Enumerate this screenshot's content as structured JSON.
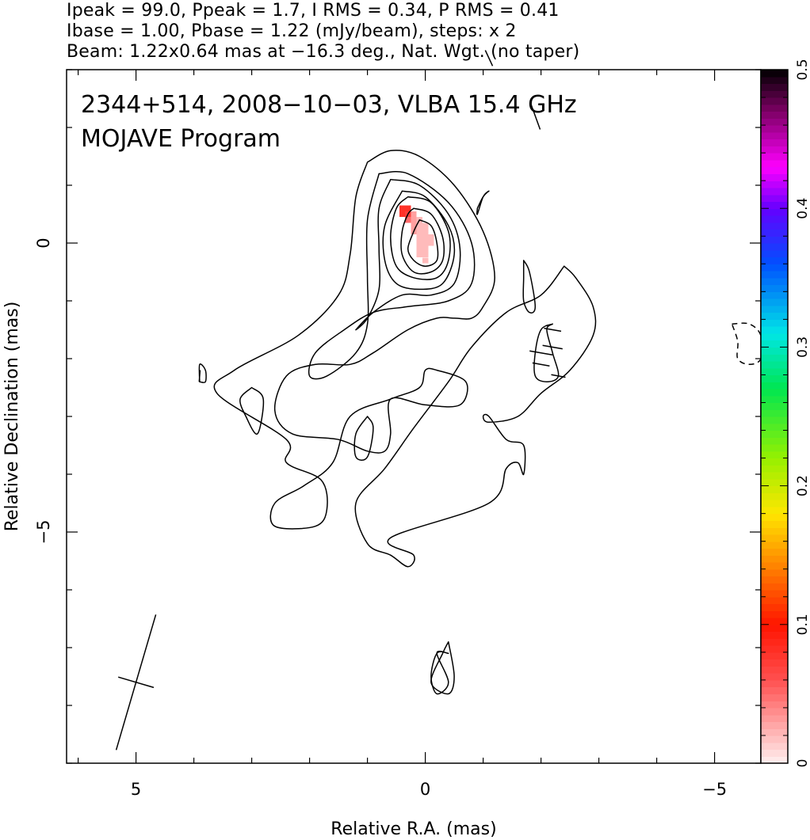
{
  "header": {
    "line1": "Ipeak = 99.0, Ppeak = 1.7, I RMS = 0.34, P RMS = 0.41",
    "line2": "Ibase = 1.00, Pbase = 1.22 (mJy/beam), steps: x 2",
    "line3": "Beam: 1.22x0.64 mas at −16.3 deg., Nat. Wgt. (no taper)"
  },
  "annotation": {
    "line1": "2344+514, 2008−10−03, VLBA 15.4 GHz",
    "line2": "MOJAVE Program"
  },
  "chart_data": {
    "type": "contour",
    "source": "2344+514",
    "date": "2008-10-03",
    "instrument": "VLBA 15.4 GHz",
    "xlabel": "Relative R.A. (mas)",
    "ylabel": "Relative Declination (mas)",
    "xlim": [
      6.2,
      -5.8
    ],
    "ylim": [
      -9.0,
      3.0
    ],
    "x_inverted": true,
    "x_ticks": [
      {
        "value": 5,
        "label": "5"
      },
      {
        "value": 0,
        "label": "0"
      },
      {
        "value": -5,
        "label": "−5"
      }
    ],
    "y_ticks": [
      {
        "value": 0,
        "label": "0"
      },
      {
        "value": -5,
        "label": "−5"
      }
    ],
    "minor_tick_step": 1,
    "stats": {
      "Ipeak": 99.0,
      "Ppeak": 1.7,
      "I_RMS": 0.34,
      "P_RMS": 0.41,
      "Ibase": 1.0,
      "Pbase": 1.22,
      "units": "mJy/beam",
      "contour_step_factor": 2
    },
    "beam": {
      "major_mas": 1.22,
      "minor_mas": 0.64,
      "pa_deg": -16.3,
      "weighting": "Natural",
      "taper": "none",
      "marker_center": [
        5.0,
        -7.6
      ]
    },
    "colorbar": {
      "min": 0,
      "max": 0.5,
      "ticks": [
        {
          "value": 0,
          "label": "0"
        },
        {
          "value": 0.1,
          "label": "0.1"
        },
        {
          "value": 0.2,
          "label": "0.2"
        },
        {
          "value": 0.3,
          "label": "0.3"
        },
        {
          "value": 0.4,
          "label": "0.4"
        },
        {
          "value": 0.5,
          "label": "0.5"
        }
      ],
      "stops": [
        {
          "v": 0.0,
          "color": "#fff0f0"
        },
        {
          "v": 0.06,
          "color": "#ff5050"
        },
        {
          "v": 0.1,
          "color": "#ff1400"
        },
        {
          "v": 0.14,
          "color": "#ff7d00"
        },
        {
          "v": 0.18,
          "color": "#ffe600"
        },
        {
          "v": 0.22,
          "color": "#96f000"
        },
        {
          "v": 0.27,
          "color": "#00e650"
        },
        {
          "v": 0.31,
          "color": "#00e6e6"
        },
        {
          "v": 0.36,
          "color": "#0050ff"
        },
        {
          "v": 0.4,
          "color": "#6400ff"
        },
        {
          "v": 0.43,
          "color": "#ff00ff"
        },
        {
          "v": 0.47,
          "color": "#7d0064"
        },
        {
          "v": 0.5,
          "color": "#000000"
        }
      ]
    },
    "fractional_pol_pixels": {
      "color_scale_max": 0.5,
      "pixels": [
        {
          "x": 0.4,
          "y": 0.6,
          "v": 0.08
        },
        {
          "x": 0.3,
          "y": 0.6,
          "v": 0.08
        },
        {
          "x": 0.3,
          "y": 0.5,
          "v": 0.07
        },
        {
          "x": 0.4,
          "y": 0.5,
          "v": 0.08
        },
        {
          "x": 0.2,
          "y": 0.5,
          "v": 0.03
        },
        {
          "x": 0.2,
          "y": 0.4,
          "v": 0.03
        },
        {
          "x": 0.1,
          "y": 0.4,
          "v": 0.02
        },
        {
          "x": 0.3,
          "y": 0.4,
          "v": 0.05
        },
        {
          "x": 0.1,
          "y": 0.3,
          "v": 0.02
        },
        {
          "x": 0.2,
          "y": 0.3,
          "v": 0.03
        },
        {
          "x": 0.0,
          "y": 0.3,
          "v": 0.02
        },
        {
          "x": 0.0,
          "y": 0.2,
          "v": 0.02
        },
        {
          "x": 0.1,
          "y": 0.2,
          "v": 0.02
        },
        {
          "x": 0.2,
          "y": 0.2,
          "v": 0.03
        },
        {
          "x": -0.1,
          "y": 0.1,
          "v": 0.02
        },
        {
          "x": 0.0,
          "y": 0.1,
          "v": 0.02
        },
        {
          "x": 0.1,
          "y": 0.1,
          "v": 0.02
        },
        {
          "x": -0.1,
          "y": 0.0,
          "v": 0.02
        },
        {
          "x": 0.0,
          "y": 0.0,
          "v": 0.02
        },
        {
          "x": 0.1,
          "y": 0.0,
          "v": 0.02
        },
        {
          "x": 0.0,
          "y": -0.1,
          "v": 0.02
        },
        {
          "x": 0.1,
          "y": -0.1,
          "v": 0.02
        },
        {
          "x": 0.0,
          "y": -0.2,
          "v": 0.02
        },
        {
          "x": 0.1,
          "y": -0.2,
          "v": 0.02
        },
        {
          "x": 0.0,
          "y": -0.3,
          "v": 0.02
        }
      ]
    },
    "contours": [
      {
        "level": 1,
        "style": "solid",
        "points": [
          [
            1.0,
            1.4
          ],
          [
            0.6,
            1.6
          ],
          [
            0.1,
            1.5
          ],
          [
            -0.5,
            1.0
          ],
          [
            -1.0,
            0.2
          ],
          [
            -1.2,
            -0.6
          ],
          [
            -1.0,
            -1.1
          ],
          [
            -0.8,
            -1.3
          ],
          [
            -0.5,
            -1.3
          ],
          [
            -0.2,
            -1.3
          ],
          [
            0.3,
            -1.5
          ],
          [
            0.9,
            -1.9
          ],
          [
            1.3,
            -2.1
          ],
          [
            1.9,
            -2.1
          ],
          [
            2.4,
            -2.3
          ],
          [
            2.6,
            -2.9
          ],
          [
            2.3,
            -3.3
          ],
          [
            1.5,
            -3.4
          ],
          [
            1.0,
            -3.6
          ],
          [
            0.7,
            -3.6
          ],
          [
            0.6,
            -3.3
          ],
          [
            0.6,
            -2.7
          ],
          [
            0.0,
            -2.8
          ],
          [
            -0.6,
            -2.8
          ],
          [
            -0.7,
            -2.4
          ],
          [
            -0.2,
            -2.2
          ],
          [
            0.0,
            -2.2
          ],
          [
            0.1,
            -2.5
          ],
          [
            0.6,
            -2.7
          ],
          [
            1.3,
            -3.0
          ],
          [
            1.6,
            -3.8
          ],
          [
            2.1,
            -4.2
          ],
          [
            2.6,
            -4.5
          ],
          [
            2.6,
            -4.9
          ],
          [
            1.9,
            -4.9
          ],
          [
            1.7,
            -4.6
          ],
          [
            1.8,
            -4.1
          ],
          [
            2.4,
            -3.8
          ],
          [
            2.4,
            -3.4
          ],
          [
            3.6,
            -2.6
          ],
          [
            3.3,
            -2.2
          ],
          [
            2.2,
            -1.6
          ],
          [
            1.5,
            -0.9
          ],
          [
            1.3,
            -0.2
          ],
          [
            1.2,
            0.8
          ],
          [
            1.0,
            1.4
          ]
        ]
      },
      {
        "level": 2,
        "style": "solid",
        "points": [
          [
            0.8,
            1.2
          ],
          [
            0.3,
            1.2
          ],
          [
            -0.4,
            0.7
          ],
          [
            -0.8,
            0.0
          ],
          [
            -0.8,
            -0.7
          ],
          [
            -0.4,
            -1.0
          ],
          [
            0.3,
            -1.1
          ],
          [
            0.9,
            -1.2
          ],
          [
            1.4,
            -1.5
          ],
          [
            1.9,
            -1.9
          ],
          [
            2.0,
            -2.3
          ],
          [
            1.7,
            -2.3
          ],
          [
            1.2,
            -1.9
          ],
          [
            1.0,
            -1.4
          ],
          [
            1.0,
            -0.6
          ],
          [
            1.0,
            0.4
          ],
          [
            0.8,
            1.2
          ]
        ]
      },
      {
        "level": 4,
        "style": "solid",
        "points": [
          [
            0.6,
            1.1
          ],
          [
            0.1,
            1.0
          ],
          [
            -0.4,
            0.5
          ],
          [
            -0.6,
            -0.1
          ],
          [
            -0.5,
            -0.7
          ],
          [
            -0.1,
            -0.9
          ],
          [
            0.4,
            -0.9
          ],
          [
            0.9,
            -1.2
          ],
          [
            1.2,
            -1.5
          ],
          [
            1.0,
            -1.3
          ],
          [
            0.8,
            -0.8
          ],
          [
            0.8,
            -0.1
          ],
          [
            0.8,
            0.6
          ],
          [
            0.6,
            1.1
          ]
        ]
      },
      {
        "level": 8,
        "style": "solid",
        "points": [
          [
            0.4,
            0.9
          ],
          [
            0.0,
            0.8
          ],
          [
            -0.4,
            0.3
          ],
          [
            -0.5,
            -0.2
          ],
          [
            -0.3,
            -0.7
          ],
          [
            0.1,
            -0.8
          ],
          [
            0.5,
            -0.7
          ],
          [
            0.7,
            -0.3
          ],
          [
            0.7,
            0.3
          ],
          [
            0.4,
            0.9
          ]
        ]
      },
      {
        "level": 16,
        "style": "solid",
        "points": [
          [
            0.3,
            0.8
          ],
          [
            -0.1,
            0.7
          ],
          [
            -0.4,
            0.2
          ],
          [
            -0.4,
            -0.3
          ],
          [
            -0.2,
            -0.6
          ],
          [
            0.2,
            -0.6
          ],
          [
            0.5,
            -0.4
          ],
          [
            0.6,
            0.1
          ],
          [
            0.5,
            0.6
          ],
          [
            0.3,
            0.8
          ]
        ]
      },
      {
        "level": 32,
        "style": "solid",
        "points": [
          [
            0.2,
            0.6
          ],
          [
            -0.1,
            0.5
          ],
          [
            -0.3,
            0.1
          ],
          [
            -0.3,
            -0.3
          ],
          [
            -0.1,
            -0.5
          ],
          [
            0.2,
            -0.5
          ],
          [
            0.4,
            -0.2
          ],
          [
            0.4,
            0.2
          ],
          [
            0.3,
            0.5
          ],
          [
            0.2,
            0.6
          ]
        ]
      },
      {
        "level": 64,
        "style": "solid",
        "points": [
          [
            0.1,
            0.4
          ],
          [
            -0.1,
            0.3
          ],
          [
            -0.2,
            0.0
          ],
          [
            -0.2,
            -0.3
          ],
          [
            0.0,
            -0.4
          ],
          [
            0.2,
            -0.3
          ],
          [
            0.3,
            -0.1
          ],
          [
            0.2,
            0.2
          ],
          [
            0.1,
            0.4
          ]
        ]
      },
      {
        "level": 1,
        "style": "solid",
        "points": [
          [
            -2.4,
            -0.4
          ],
          [
            -2.0,
            -0.9
          ],
          [
            -1.4,
            -1.2
          ],
          [
            -0.8,
            -1.8
          ],
          [
            -0.4,
            -2.4
          ],
          [
            0.2,
            -3.2
          ],
          [
            0.7,
            -3.9
          ],
          [
            1.2,
            -4.5
          ],
          [
            1.0,
            -5.2
          ],
          [
            0.6,
            -5.4
          ],
          [
            0.3,
            -5.6
          ],
          [
            0.2,
            -5.4
          ],
          [
            0.6,
            -5.1
          ],
          [
            -1.1,
            -4.5
          ],
          [
            -1.4,
            -3.9
          ],
          [
            -1.6,
            -3.8
          ],
          [
            -1.7,
            -4.0
          ],
          [
            -1.7,
            -3.5
          ],
          [
            -1.4,
            -3.4
          ],
          [
            -1.1,
            -3.0
          ],
          [
            -1.0,
            -3.0
          ],
          [
            -1.1,
            -3.1
          ],
          [
            -1.6,
            -3.0
          ],
          [
            -2.0,
            -2.6
          ],
          [
            -2.5,
            -2.2
          ],
          [
            -2.9,
            -1.6
          ],
          [
            -2.9,
            -1.1
          ],
          [
            -2.6,
            -0.6
          ],
          [
            -2.4,
            -0.4
          ]
        ]
      },
      {
        "level": 1,
        "style": "solid",
        "points": [
          [
            -2.2,
            -1.4
          ],
          [
            -2.1,
            -1.5
          ],
          [
            -2.2,
            -1.9
          ],
          [
            -2.3,
            -2.3
          ],
          [
            -2.1,
            -2.4
          ],
          [
            -1.9,
            -2.3
          ],
          [
            -1.9,
            -1.9
          ],
          [
            -2.0,
            -1.5
          ],
          [
            -2.2,
            -1.4
          ]
        ]
      },
      {
        "level": 1,
        "style": "solid",
        "points": [
          [
            -0.9,
            0.6
          ],
          [
            -1.0,
            0.8
          ],
          [
            -1.1,
            0.9
          ],
          [
            -1.0,
            0.8
          ],
          [
            -0.9,
            0.5
          ],
          [
            -0.9,
            0.6
          ]
        ]
      },
      {
        "level": 1,
        "style": "solid",
        "points": [
          [
            -1.7,
            -0.3
          ],
          [
            -1.8,
            -0.5
          ],
          [
            -1.9,
            -1.1
          ],
          [
            -1.8,
            -1.2
          ],
          [
            -1.7,
            -1.0
          ],
          [
            -1.7,
            -0.6
          ],
          [
            -1.7,
            -0.3
          ]
        ]
      },
      {
        "level": 1,
        "style": "solid",
        "points": [
          [
            3.0,
            -2.5
          ],
          [
            2.8,
            -2.7
          ],
          [
            2.9,
            -3.3
          ],
          [
            3.1,
            -3.0
          ],
          [
            3.2,
            -2.7
          ],
          [
            3.0,
            -2.5
          ]
        ]
      },
      {
        "level": 1,
        "style": "solid",
        "points": [
          [
            1.0,
            -3.0
          ],
          [
            0.9,
            -3.2
          ],
          [
            1.0,
            -3.7
          ],
          [
            1.2,
            -3.7
          ],
          [
            1.2,
            -3.3
          ],
          [
            1.0,
            -3.0
          ]
        ]
      },
      {
        "level": 1,
        "style": "solid",
        "points": [
          [
            3.9,
            -2.4
          ],
          [
            3.8,
            -2.4
          ],
          [
            3.8,
            -2.2
          ],
          [
            3.9,
            -2.1
          ],
          [
            3.9,
            -2.4
          ]
        ]
      },
      {
        "level": 1,
        "style": "solid",
        "points": [
          [
            -0.4,
            -7.1
          ],
          [
            -0.2,
            -7.1
          ],
          [
            -0.4,
            -7.6
          ],
          [
            -0.2,
            -7.8
          ],
          [
            -0.1,
            -7.5
          ],
          [
            -0.2,
            -7.1
          ],
          [
            -0.4,
            -7.1
          ]
        ]
      },
      {
        "level": 1,
        "style": "solid",
        "points": [
          [
            -0.4,
            -6.9
          ],
          [
            -0.3,
            -7.1
          ],
          [
            -0.1,
            -7.6
          ],
          [
            -0.4,
            -7.8
          ],
          [
            -0.5,
            -7.5
          ],
          [
            -0.4,
            -6.9
          ]
        ]
      },
      {
        "level": -1,
        "style": "dashed",
        "points": [
          [
            -5.3,
            -1.4
          ],
          [
            -5.6,
            -1.4
          ],
          [
            -5.8,
            -1.6
          ],
          [
            -5.8,
            -2.0
          ],
          [
            -5.6,
            -2.1
          ],
          [
            -5.4,
            -2.0
          ],
          [
            -5.4,
            -1.7
          ],
          [
            -5.3,
            -1.4
          ]
        ]
      }
    ],
    "pol_vectors": [
      {
        "x": -2.2,
        "y": -1.5,
        "pa_deg": 80,
        "len": 0.3
      },
      {
        "x": -2.2,
        "y": -1.8,
        "pa_deg": 80,
        "len": 0.35
      },
      {
        "x": -2.0,
        "y": -2.1,
        "pa_deg": 80,
        "len": 0.3
      },
      {
        "x": -2.3,
        "y": -2.3,
        "pa_deg": 80,
        "len": 0.25
      },
      {
        "x": -2.0,
        "y": -1.9,
        "pa_deg": 80,
        "len": 0.4
      },
      {
        "x": 3.9,
        "y": -2.3,
        "pa_deg": -5,
        "len": 0.2
      },
      {
        "x": -1.1,
        "y": 3.2,
        "pa_deg": 25,
        "len": 0.3
      },
      {
        "x": -1.9,
        "y": 2.2,
        "pa_deg": 20,
        "len": 0.5
      }
    ]
  }
}
